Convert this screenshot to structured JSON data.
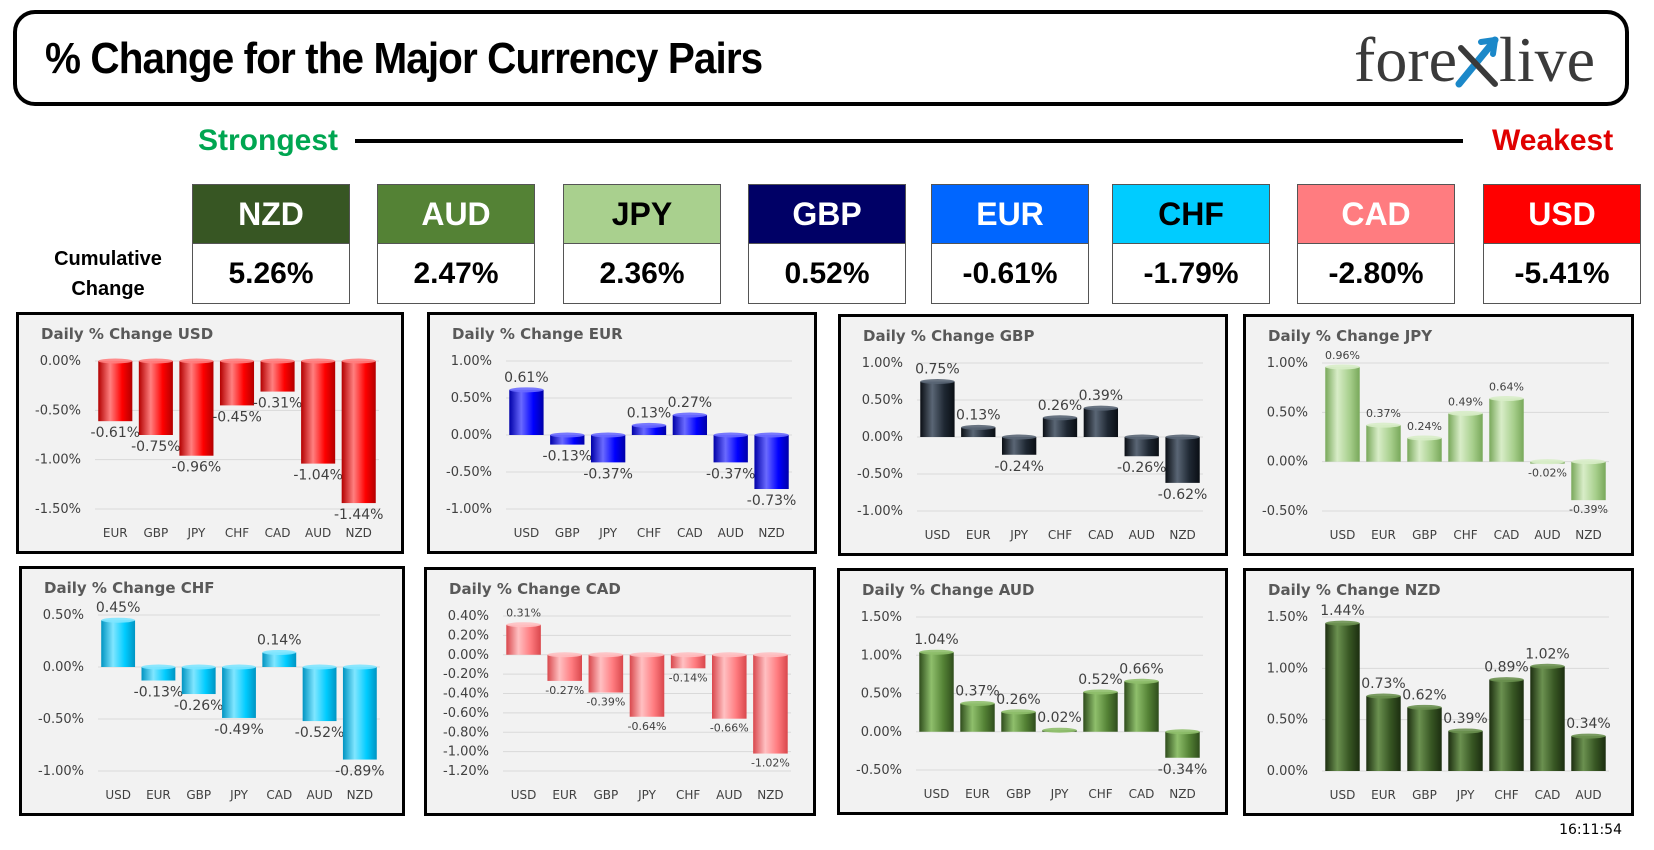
{
  "header": {
    "title": "% Change for the Major Currency Pairs",
    "logo_left": "fore",
    "logo_right": "live"
  },
  "scale": {
    "strongest_label": "Strongest",
    "weakest_label": "Weakest",
    "strongest_color": "#00a651",
    "weakest_color": "#e00000"
  },
  "cumulative": {
    "label_line1": "Cumulative",
    "label_line2": "Change",
    "currencies": [
      {
        "code": "NZD",
        "value": "5.26%",
        "bg": "#375623",
        "fg": "#ffffff"
      },
      {
        "code": "AUD",
        "value": "2.47%",
        "bg": "#548235",
        "fg": "#ffffff"
      },
      {
        "code": "JPY",
        "value": "2.36%",
        "bg": "#a9d08e",
        "fg": "#000000"
      },
      {
        "code": "GBP",
        "value": "0.52%",
        "bg": "#000066",
        "fg": "#ffffff"
      },
      {
        "code": "EUR",
        "value": "-0.61%",
        "bg": "#0066ff",
        "fg": "#ffffff"
      },
      {
        "code": "CHF",
        "value": "-1.79%",
        "bg": "#00ccff",
        "fg": "#000000"
      },
      {
        "code": "CAD",
        "value": "-2.80%",
        "bg": "#ff7c80",
        "fg": "#ffffff"
      },
      {
        "code": "USD",
        "value": "-5.41%",
        "bg": "#ff0000",
        "fg": "#ffffff"
      }
    ]
  },
  "timestamp": "16:11:54",
  "chart_data": [
    {
      "type": "bar",
      "title": "Daily % Change USD",
      "categories": [
        "EUR",
        "GBP",
        "JPY",
        "CHF",
        "CAD",
        "AUD",
        "NZD"
      ],
      "values": [
        -0.61,
        -0.75,
        -0.96,
        -0.45,
        -0.31,
        -1.04,
        -1.44
      ],
      "labels": [
        "-0.61%",
        "-0.75%",
        "-0.96%",
        "-0.45%",
        "-0.31%",
        "-1.04%",
        "-1.44%"
      ],
      "yticks": [
        0,
        -0.5,
        -1,
        -1.5
      ],
      "ytick_labels": [
        "0.00%",
        "-0.50%",
        "-1.00%",
        "-1.50%"
      ],
      "ylim": [
        -1.5,
        0
      ],
      "color": "#ff0000",
      "dark": "#b30000",
      "light": "#ff8080"
    },
    {
      "type": "bar",
      "title": "Daily % Change EUR",
      "categories": [
        "USD",
        "GBP",
        "JPY",
        "CHF",
        "CAD",
        "AUD",
        "NZD"
      ],
      "values": [
        0.61,
        -0.13,
        -0.37,
        0.13,
        0.27,
        -0.37,
        -0.73
      ],
      "labels": [
        "0.61%",
        "-0.13%",
        "-0.37%",
        "0.13%",
        "0.27%",
        "-0.37%",
        "-0.73%"
      ],
      "yticks": [
        1,
        0.5,
        0,
        -0.5,
        -1
      ],
      "ytick_labels": [
        "1.00%",
        "0.50%",
        "0.00%",
        "-0.50%",
        "-1.00%"
      ],
      "ylim": [
        -1,
        1
      ],
      "color": "#0000ff",
      "dark": "#0000a8",
      "light": "#6a6aff"
    },
    {
      "type": "bar",
      "title": "Daily % Change GBP",
      "categories": [
        "USD",
        "EUR",
        "JPY",
        "CHF",
        "CAD",
        "AUD",
        "NZD"
      ],
      "values": [
        0.75,
        0.13,
        -0.24,
        0.26,
        0.39,
        -0.26,
        -0.62
      ],
      "labels": [
        "0.75%",
        "0.13%",
        "-0.24%",
        "0.26%",
        "0.39%",
        "-0.26%",
        "-0.62%"
      ],
      "yticks": [
        1,
        0.5,
        0,
        -0.5,
        -1
      ],
      "ytick_labels": [
        "1.00%",
        "0.50%",
        "0.00%",
        "-0.50%",
        "-1.00%"
      ],
      "ylim": [
        -1,
        1
      ],
      "color": "#1f2833",
      "dark": "#0a0e14",
      "light": "#5a6675"
    },
    {
      "type": "bar",
      "title": "Daily % Change JPY",
      "categories": [
        "USD",
        "EUR",
        "GBP",
        "CHF",
        "CAD",
        "AUD",
        "NZD"
      ],
      "values": [
        0.96,
        0.37,
        0.24,
        0.49,
        0.64,
        -0.02,
        -0.39
      ],
      "labels": [
        "0.96%",
        "0.37%",
        "0.24%",
        "0.49%",
        "0.64%",
        "-0.02%",
        "-0.39%"
      ],
      "yticks": [
        1,
        0.5,
        0,
        -0.5
      ],
      "ytick_labels": [
        "1.00%",
        "0.50%",
        "0.00%",
        "-0.50%"
      ],
      "ylim": [
        -0.5,
        1
      ],
      "color": "#a9d08e",
      "dark": "#78a85a",
      "light": "#d8edc8"
    },
    {
      "type": "bar",
      "title": "Daily % Change CHF",
      "categories": [
        "USD",
        "EUR",
        "GBP",
        "JPY",
        "CAD",
        "AUD",
        "NZD"
      ],
      "values": [
        0.45,
        -0.13,
        -0.26,
        -0.49,
        0.14,
        -0.52,
        -0.89
      ],
      "labels": [
        "0.45%",
        "-0.13%",
        "-0.26%",
        "-0.49%",
        "0.14%",
        "-0.52%",
        "-0.89%"
      ],
      "yticks": [
        0.5,
        0,
        -0.5,
        -1
      ],
      "ytick_labels": [
        "0.50%",
        "0.00%",
        "-0.50%",
        "-1.00%"
      ],
      "ylim": [
        -1,
        0.5
      ],
      "color": "#00ccff",
      "dark": "#0094c2",
      "light": "#80e6ff"
    },
    {
      "type": "bar",
      "title": "Daily % Change CAD",
      "categories": [
        "USD",
        "EUR",
        "GBP",
        "JPY",
        "CHF",
        "AUD",
        "NZD"
      ],
      "values": [
        0.31,
        -0.27,
        -0.39,
        -0.64,
        -0.14,
        -0.66,
        -1.02
      ],
      "labels": [
        "0.31%",
        "-0.27%",
        "-0.39%",
        "-0.64%",
        "-0.14%",
        "-0.66%",
        "-1.02%"
      ],
      "yticks": [
        0.4,
        0.2,
        0,
        -0.2,
        -0.4,
        -0.6,
        -0.8,
        -1,
        -1.2
      ],
      "ytick_labels": [
        "0.40%",
        "0.20%",
        "0.00%",
        "-0.20%",
        "-0.40%",
        "-0.60%",
        "-0.80%",
        "-1.00%",
        "-1.20%"
      ],
      "ylim": [
        -1.2,
        0.4
      ],
      "color": "#ff7c80",
      "dark": "#d9474c",
      "light": "#ffc0c2"
    },
    {
      "type": "bar",
      "title": "Daily % Change AUD",
      "categories": [
        "USD",
        "EUR",
        "GBP",
        "JPY",
        "CHF",
        "CAD",
        "NZD"
      ],
      "values": [
        1.04,
        0.37,
        0.26,
        0.02,
        0.52,
        0.66,
        -0.34
      ],
      "labels": [
        "1.04%",
        "0.37%",
        "0.26%",
        "0.02%",
        "0.52%",
        "0.66%",
        "-0.34%"
      ],
      "yticks": [
        1.5,
        1,
        0.5,
        0,
        -0.5
      ],
      "ytick_labels": [
        "1.50%",
        "1.00%",
        "0.50%",
        "0.00%",
        "-0.50%"
      ],
      "ylim": [
        -0.5,
        1.5
      ],
      "color": "#548235",
      "dark": "#2f4d1c",
      "light": "#8fbf6c"
    },
    {
      "type": "bar",
      "title": "Daily % Change NZD",
      "categories": [
        "USD",
        "EUR",
        "GBP",
        "JPY",
        "CHF",
        "CAD",
        "AUD"
      ],
      "values": [
        1.44,
        0.73,
        0.62,
        0.39,
        0.89,
        1.02,
        0.34
      ],
      "labels": [
        "1.44%",
        "0.73%",
        "0.62%",
        "0.39%",
        "0.89%",
        "1.02%",
        "0.34%"
      ],
      "yticks": [
        1.5,
        1,
        0.5,
        0
      ],
      "ytick_labels": [
        "1.50%",
        "1.00%",
        "0.50%",
        "0.00%"
      ],
      "ylim": [
        0,
        1.5
      ],
      "color": "#375623",
      "dark": "#1c2e10",
      "light": "#6b9150"
    }
  ]
}
